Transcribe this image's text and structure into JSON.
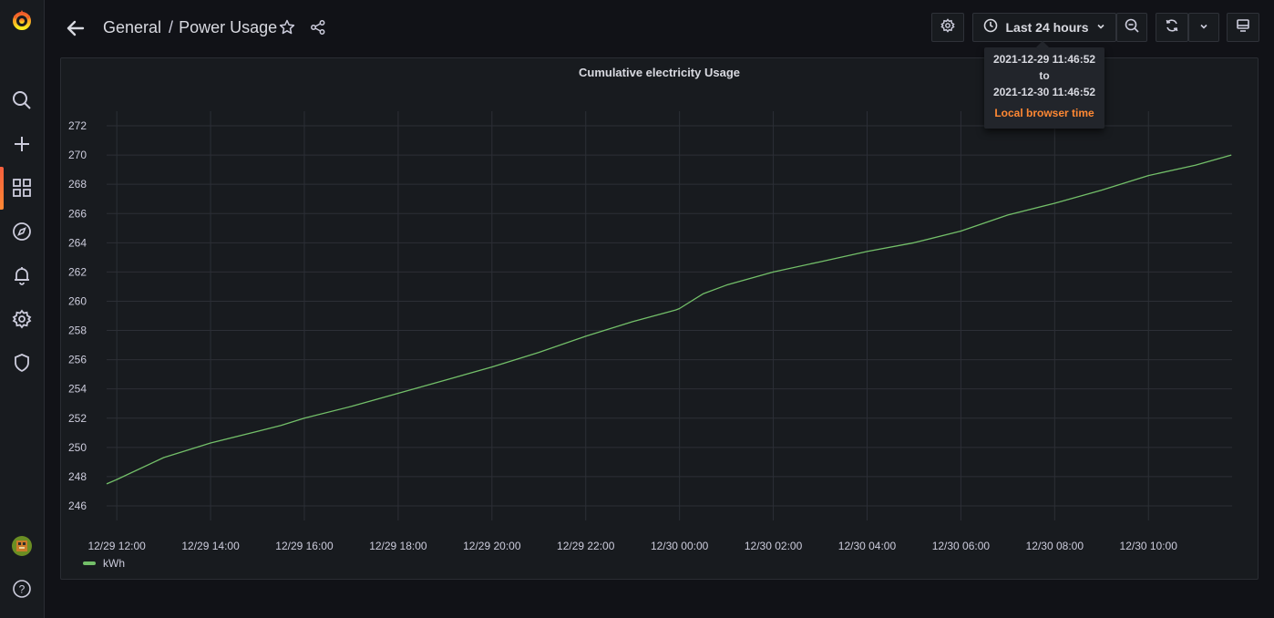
{
  "breadcrumb": {
    "folder": "General",
    "separator": "/",
    "dashboard": "Power Usage"
  },
  "time_picker": {
    "label": "Last 24 hours"
  },
  "tooltip": {
    "from": "2021-12-29 11:46:52",
    "to_word": "to",
    "to": "2021-12-30 11:46:52",
    "timezone": "Local browser time"
  },
  "panel": {
    "title": "Cumulative electricity Usage"
  },
  "colors": {
    "series": "#73bf69",
    "accent": "#ff8833",
    "background": "#111217",
    "panel": "#181b1f"
  },
  "icons": {
    "sidebar": [
      "grafana-logo-icon",
      "search-icon",
      "plus-icon",
      "dashboards-icon",
      "explore-icon",
      "alerting-icon",
      "settings-icon",
      "shield-icon",
      "avatar",
      "help-icon"
    ],
    "toolbar": [
      "arrow-left-icon",
      "star-icon",
      "share-icon",
      "gear-icon",
      "clock-icon",
      "chevron-down-icon",
      "zoom-out-icon",
      "sync-icon",
      "chevron-down-icon",
      "monitor-icon"
    ]
  },
  "chart_data": {
    "type": "line",
    "x_tick_labels": [
      "12/29 12:00",
      "12/29 14:00",
      "12/29 16:00",
      "12/29 18:00",
      "12/29 20:00",
      "12/29 22:00",
      "12/30 00:00",
      "12/30 02:00",
      "12/30 04:00",
      "12/30 06:00",
      "12/30 08:00",
      "12/30 10:00"
    ],
    "y_tick_labels": [
      "246",
      "248",
      "250",
      "252",
      "254",
      "256",
      "258",
      "260",
      "262",
      "264",
      "266",
      "268",
      "270",
      "272"
    ],
    "ylim": [
      245,
      273
    ],
    "x_range": [
      "2021-12-29 11:46:52",
      "2021-12-30 11:46:52"
    ],
    "grid": true,
    "legend_placement": "bottom-left",
    "series": [
      {
        "name": "kWh",
        "x": [
          "12/29 11:47",
          "12/29 12:00",
          "12/29 13:00",
          "12/29 14:00",
          "12/29 15:00",
          "12/29 15:30",
          "12/29 16:00",
          "12/29 17:00",
          "12/29 18:00",
          "12/29 19:00",
          "12/29 20:00",
          "12/29 21:00",
          "12/29 22:00",
          "12/29 23:00",
          "12/29 23:55",
          "12/30 00:00",
          "12/30 00:30",
          "12/30 01:00",
          "12/30 02:00",
          "12/30 03:00",
          "12/30 04:00",
          "12/30 05:00",
          "12/30 06:00",
          "12/30 07:00",
          "12/30 08:00",
          "12/30 09:00",
          "12/30 10:00",
          "12/30 11:00",
          "12/30 11:46"
        ],
        "y": [
          247.5,
          247.8,
          249.3,
          250.3,
          251.1,
          251.5,
          252.0,
          252.8,
          253.7,
          254.6,
          255.5,
          256.5,
          257.6,
          258.6,
          259.4,
          259.5,
          260.5,
          261.1,
          262.0,
          262.7,
          263.4,
          264.0,
          264.8,
          265.9,
          266.7,
          267.6,
          268.6,
          269.3,
          270.0
        ]
      }
    ]
  }
}
